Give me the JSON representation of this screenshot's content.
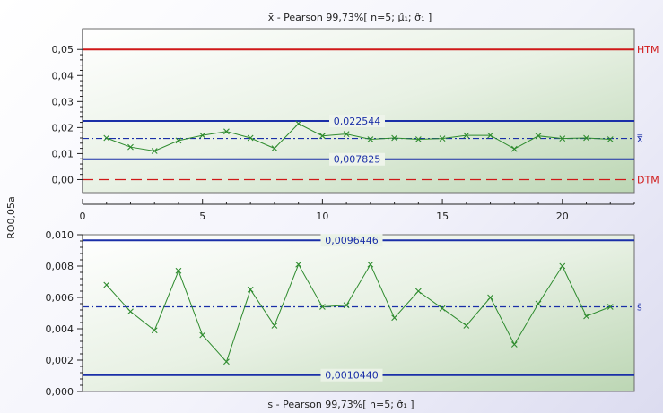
{
  "chart_data": [
    {
      "type": "line",
      "title": "x̄ - Pearson 99,73%[ n=5; µ̂₁; σ̂₁ ]",
      "ylabel": "RO0,05a",
      "ylim": [
        -0.005,
        0.058
      ],
      "xlim": [
        0,
        23
      ],
      "yticks": [
        "0,00",
        "0,01",
        "0,02",
        "0,03",
        "0,04",
        "0,05"
      ],
      "xticks": [
        "0",
        "5",
        "10",
        "15",
        "20"
      ],
      "series": [
        {
          "x": [
            1,
            2,
            3,
            4,
            5,
            6,
            7,
            8,
            9,
            10,
            11,
            12,
            13,
            14,
            15,
            16,
            17,
            18,
            19,
            20,
            21,
            22
          ],
          "values": [
            0.016,
            0.0125,
            0.011,
            0.015,
            0.017,
            0.0185,
            0.016,
            0.012,
            0.0215,
            0.0168,
            0.0175,
            0.0155,
            0.016,
            0.0155,
            0.0158,
            0.017,
            0.017,
            0.0118,
            0.0168,
            0.0158,
            0.016,
            0.0155
          ],
          "color": "#2e8b2e"
        }
      ],
      "limits": [
        {
          "name": "HTM",
          "value": 0.05,
          "style": "solid",
          "color": "#d01818"
        },
        {
          "name": "DTM",
          "value": 0.0,
          "style": "dashed",
          "color": "#d01818"
        },
        {
          "name": "",
          "value": 0.022544,
          "label": "0,022544",
          "style": "solid",
          "color": "#1a2fa8"
        },
        {
          "name": "",
          "value": 0.007825,
          "label": "0,007825",
          "style": "solid",
          "color": "#1a2fa8"
        },
        {
          "name": "x̿",
          "value": 0.0158,
          "style": "dashdot",
          "color": "#1a2fa8"
        }
      ],
      "grid": false
    },
    {
      "type": "line",
      "title": "s - Pearson 99,73%[ n=5; σ̂₁ ]",
      "ylim": [
        0,
        0.01
      ],
      "xlim": [
        0,
        23
      ],
      "yticks": [
        "0,000",
        "0,002",
        "0,004",
        "0,006",
        "0,008",
        "0,010"
      ],
      "series": [
        {
          "x": [
            1,
            2,
            3,
            4,
            5,
            6,
            7,
            8,
            9,
            10,
            11,
            12,
            13,
            14,
            15,
            16,
            17,
            18,
            19,
            20,
            21,
            22
          ],
          "values": [
            0.0068,
            0.0051,
            0.0039,
            0.0077,
            0.0036,
            0.0019,
            0.0065,
            0.0042,
            0.0081,
            0.0054,
            0.0055,
            0.0081,
            0.0047,
            0.0064,
            0.0053,
            0.0042,
            0.006,
            0.003,
            0.0056,
            0.008,
            0.0048,
            0.0054
          ],
          "color": "#2e8b2e"
        }
      ],
      "limits": [
        {
          "name": "",
          "value": 0.0096446,
          "label": "0,0096446",
          "style": "solid",
          "color": "#1a2fa8"
        },
        {
          "name": "",
          "value": 0.001044,
          "label": "0,0010440",
          "style": "solid",
          "color": "#1a2fa8"
        },
        {
          "name": "s̄",
          "value": 0.0054,
          "style": "dashdot",
          "color": "#1a2fa8"
        }
      ],
      "grid": false
    }
  ]
}
